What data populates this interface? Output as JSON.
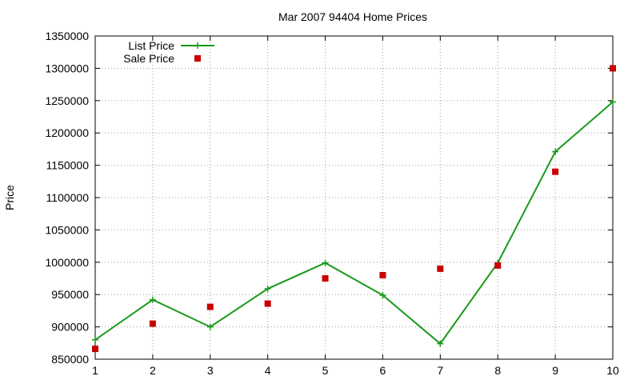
{
  "chart_data": {
    "type": "line",
    "title": "Mar 2007 94404 Home Prices",
    "xlabel": "",
    "ylabel": "Price",
    "x": [
      1,
      2,
      3,
      4,
      5,
      6,
      7,
      8,
      9,
      10
    ],
    "xlim": [
      1,
      10
    ],
    "ylim": [
      850000,
      1350000
    ],
    "xticks": [
      "1",
      "2",
      "3",
      "4",
      "5",
      "6",
      "7",
      "8",
      "9",
      "10"
    ],
    "yticks": [
      "850000",
      "900000",
      "950000",
      "1000000",
      "1050000",
      "1100000",
      "1150000",
      "1200000",
      "1250000",
      "1300000",
      "1350000"
    ],
    "grid": true,
    "legend_position": "top-left",
    "series": [
      {
        "name": "List Price",
        "style": "line-with-plus-markers",
        "color": "#1a9a1a",
        "values": [
          880000,
          942000,
          900000,
          959000,
          999000,
          949000,
          874000,
          999000,
          1171000,
          1248000
        ]
      },
      {
        "name": "Sale Price",
        "style": "square-markers",
        "color": "#c80000",
        "values": [
          866000,
          905000,
          931000,
          936000,
          975000,
          980000,
          990000,
          995000,
          1140000,
          1300000
        ]
      }
    ]
  }
}
